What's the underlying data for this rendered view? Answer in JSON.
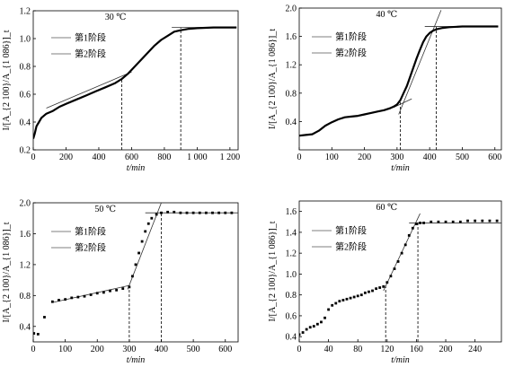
{
  "chart_data": [
    {
      "type": "scatter",
      "title": "30 ℃",
      "xlabel": "t/min",
      "ylabel": "I/[A_{2 100}/A_{1 086}]_t",
      "xlim": [
        0,
        1250
      ],
      "ylim": [
        0.2,
        1.2
      ],
      "xticks": [
        0,
        200,
        400,
        600,
        800,
        1000,
        1200
      ],
      "xtick_labels": [
        "0",
        "200",
        "400",
        "600",
        "800",
        "1 000",
        "1 200"
      ],
      "yticks": [
        0.2,
        0.4,
        0.6,
        0.8,
        1.0,
        1.2
      ],
      "ytick_labels": [
        "0.2",
        "0.4",
        "0.6",
        "0.8",
        "1.0",
        "1.2"
      ],
      "legend": [
        "第1阶段",
        "第2阶段"
      ],
      "legend_position": "top-left",
      "curve": [
        [
          0,
          0.28
        ],
        [
          10,
          0.32
        ],
        [
          20,
          0.37
        ],
        [
          35,
          0.4
        ],
        [
          50,
          0.43
        ],
        [
          80,
          0.46
        ],
        [
          120,
          0.48
        ],
        [
          160,
          0.51
        ],
        [
          200,
          0.53
        ],
        [
          260,
          0.56
        ],
        [
          320,
          0.59
        ],
        [
          380,
          0.62
        ],
        [
          440,
          0.65
        ],
        [
          500,
          0.68
        ],
        [
          540,
          0.71
        ],
        [
          580,
          0.75
        ],
        [
          620,
          0.8
        ],
        [
          660,
          0.85
        ],
        [
          700,
          0.9
        ],
        [
          740,
          0.95
        ],
        [
          780,
          0.99
        ],
        [
          820,
          1.02
        ],
        [
          860,
          1.05
        ],
        [
          900,
          1.06
        ],
        [
          950,
          1.07
        ],
        [
          1000,
          1.075
        ],
        [
          1100,
          1.08
        ],
        [
          1240,
          1.08
        ]
      ],
      "fit_lines": [
        {
          "x": [
            80,
            600
          ],
          "y": [
            0.5,
            0.76
          ]
        },
        {
          "x": [
            845,
            1240
          ],
          "y": [
            1.08,
            1.08
          ]
        }
      ],
      "vlines": [
        {
          "x": 540,
          "y0": 0.2,
          "y1": 0.71
        },
        {
          "x": 900,
          "y0": 0.2,
          "y1": 1.08
        }
      ],
      "markers": false
    },
    {
      "type": "scatter",
      "title": "40 ℃",
      "xlabel": "t/min",
      "ylabel": "I/[A_{2 100}/A_{1 086}]_t",
      "xlim": [
        0,
        620
      ],
      "ylim": [
        0,
        2.0
      ],
      "xticks": [
        0,
        100,
        200,
        300,
        400,
        500,
        600
      ],
      "xtick_labels": [
        "0",
        "100",
        "200",
        "300",
        "400",
        "500",
        "600"
      ],
      "yticks": [
        0.4,
        0.8,
        1.2,
        1.6,
        2.0
      ],
      "ytick_labels": [
        "0.4",
        "0.8",
        "1.2",
        "1.6",
        "2.0"
      ],
      "legend": [
        "第1阶段",
        "第2阶段"
      ],
      "legend_position": "top-left",
      "curve": [
        [
          0,
          0.2
        ],
        [
          20,
          0.21
        ],
        [
          40,
          0.22
        ],
        [
          60,
          0.27
        ],
        [
          80,
          0.34
        ],
        [
          100,
          0.39
        ],
        [
          120,
          0.43
        ],
        [
          140,
          0.46
        ],
        [
          160,
          0.47
        ],
        [
          180,
          0.48
        ],
        [
          200,
          0.5
        ],
        [
          220,
          0.52
        ],
        [
          240,
          0.54
        ],
        [
          260,
          0.56
        ],
        [
          280,
          0.59
        ],
        [
          290,
          0.61
        ],
        [
          300,
          0.64
        ],
        [
          310,
          0.7
        ],
        [
          320,
          0.8
        ],
        [
          330,
          0.9
        ],
        [
          340,
          1.03
        ],
        [
          350,
          1.16
        ],
        [
          360,
          1.29
        ],
        [
          370,
          1.41
        ],
        [
          380,
          1.52
        ],
        [
          390,
          1.6
        ],
        [
          400,
          1.65
        ],
        [
          410,
          1.68
        ],
        [
          420,
          1.7
        ],
        [
          440,
          1.72
        ],
        [
          460,
          1.73
        ],
        [
          500,
          1.74
        ],
        [
          560,
          1.74
        ],
        [
          610,
          1.74
        ]
      ],
      "fit_lines": [
        {
          "x": [
            290,
            345
          ],
          "y": [
            0.6,
            0.72
          ]
        },
        {
          "x": [
            305,
            435
          ],
          "y": [
            0.5,
            1.97
          ]
        },
        {
          "x": [
            385,
            610
          ],
          "y": [
            1.74,
            1.74
          ]
        }
      ],
      "vlines": [
        {
          "x": 310,
          "y0": 0,
          "y1": 0.7
        },
        {
          "x": 420,
          "y0": 0,
          "y1": 1.74
        }
      ],
      "markers": false
    },
    {
      "type": "scatter",
      "title": "50 ℃",
      "xlabel": "t/min",
      "ylabel": "I/[A_{2 100}/A_{1 086}]_t",
      "xlim": [
        0,
        640
      ],
      "ylim": [
        0.2,
        2.0
      ],
      "xticks": [
        0,
        100,
        200,
        300,
        400,
        500,
        600
      ],
      "xtick_labels": [
        "0",
        "100",
        "200",
        "300",
        "400",
        "500",
        "600"
      ],
      "yticks": [
        0.4,
        0.8,
        1.2,
        1.6,
        2.0
      ],
      "ytick_labels": [
        "0.4",
        "0.8",
        "1.2",
        "1.6",
        "2.0"
      ],
      "legend": [
        "第1阶段",
        "第2阶段"
      ],
      "legend_position": "top-left",
      "points": [
        [
          2,
          0.31
        ],
        [
          15,
          0.3
        ],
        [
          35,
          0.52
        ],
        [
          60,
          0.72
        ],
        [
          80,
          0.74
        ],
        [
          100,
          0.75
        ],
        [
          120,
          0.77
        ],
        [
          140,
          0.78
        ],
        [
          160,
          0.79
        ],
        [
          180,
          0.81
        ],
        [
          200,
          0.83
        ],
        [
          220,
          0.84
        ],
        [
          240,
          0.86
        ],
        [
          260,
          0.87
        ],
        [
          280,
          0.89
        ],
        [
          300,
          0.91
        ],
        [
          310,
          1.05
        ],
        [
          320,
          1.2
        ],
        [
          330,
          1.35
        ],
        [
          340,
          1.5
        ],
        [
          350,
          1.63
        ],
        [
          360,
          1.73
        ],
        [
          370,
          1.8
        ],
        [
          385,
          1.85
        ],
        [
          400,
          1.87
        ],
        [
          420,
          1.88
        ],
        [
          440,
          1.88
        ],
        [
          460,
          1.87
        ],
        [
          480,
          1.87
        ],
        [
          500,
          1.87
        ],
        [
          520,
          1.87
        ],
        [
          540,
          1.87
        ],
        [
          560,
          1.87
        ],
        [
          580,
          1.87
        ],
        [
          600,
          1.87
        ],
        [
          620,
          1.87
        ]
      ],
      "fit_lines": [
        {
          "x": [
            60,
            300
          ],
          "y": [
            0.71,
            0.93
          ]
        },
        {
          "x": [
            295,
            400
          ],
          "y": [
            0.88,
            2.0
          ]
        },
        {
          "x": [
            350,
            640
          ],
          "y": [
            1.87,
            1.87
          ]
        }
      ],
      "vlines": [
        {
          "x": 300,
          "y0": 0.2,
          "y1": 0.93
        },
        {
          "x": 400,
          "y0": 0.2,
          "y1": 1.87
        }
      ],
      "markers": true
    },
    {
      "type": "scatter",
      "title": "60 ℃",
      "xlabel": "t/min",
      "ylabel": "I/[A_{2 100}/A_{1 086}]_t",
      "xlim": [
        0,
        276
      ],
      "ylim": [
        0.35,
        1.7
      ],
      "xticks": [
        0,
        40,
        80,
        120,
        160,
        200,
        240
      ],
      "xtick_labels": [
        "0",
        "40",
        "80",
        "120",
        "160",
        "200",
        "240"
      ],
      "yticks": [
        0.4,
        0.6,
        0.8,
        1.0,
        1.2,
        1.4,
        1.6
      ],
      "ytick_labels": [
        "0.4",
        "0.6",
        "0.8",
        "1.0",
        "1.2",
        "1.4",
        "1.6"
      ],
      "legend": [
        "第1阶段",
        "第2阶段"
      ],
      "legend_position": "top-left",
      "points": [
        [
          0,
          0.42
        ],
        [
          5,
          0.44
        ],
        [
          10,
          0.47
        ],
        [
          15,
          0.49
        ],
        [
          20,
          0.5
        ],
        [
          25,
          0.52
        ],
        [
          30,
          0.54
        ],
        [
          35,
          0.58
        ],
        [
          40,
          0.66
        ],
        [
          45,
          0.7
        ],
        [
          50,
          0.72
        ],
        [
          55,
          0.74
        ],
        [
          60,
          0.75
        ],
        [
          65,
          0.76
        ],
        [
          70,
          0.77
        ],
        [
          75,
          0.78
        ],
        [
          80,
          0.79
        ],
        [
          85,
          0.8
        ],
        [
          90,
          0.82
        ],
        [
          95,
          0.83
        ],
        [
          100,
          0.84
        ],
        [
          105,
          0.86
        ],
        [
          110,
          0.87
        ],
        [
          115,
          0.88
        ],
        [
          120,
          0.92
        ],
        [
          125,
          0.98
        ],
        [
          130,
          1.05
        ],
        [
          135,
          1.12
        ],
        [
          140,
          1.2
        ],
        [
          145,
          1.28
        ],
        [
          150,
          1.37
        ],
        [
          155,
          1.44
        ],
        [
          160,
          1.48
        ],
        [
          165,
          1.49
        ],
        [
          170,
          1.49
        ],
        [
          180,
          1.5
        ],
        [
          190,
          1.5
        ],
        [
          200,
          1.5
        ],
        [
          210,
          1.5
        ],
        [
          220,
          1.5
        ],
        [
          230,
          1.51
        ],
        [
          240,
          1.51
        ],
        [
          250,
          1.51
        ],
        [
          260,
          1.51
        ],
        [
          270,
          1.51
        ]
      ],
      "fit_lines": [
        {
          "x": [
            115,
            165
          ],
          "y": [
            0.84,
            1.58
          ]
        },
        {
          "x": [
            150,
            276
          ],
          "y": [
            1.49,
            1.49
          ]
        }
      ],
      "vlines": [
        {
          "x": 118,
          "y0": 0.35,
          "y1": 0.9
        },
        {
          "x": 162,
          "y0": 0.35,
          "y1": 1.49
        }
      ],
      "markers": true
    }
  ]
}
